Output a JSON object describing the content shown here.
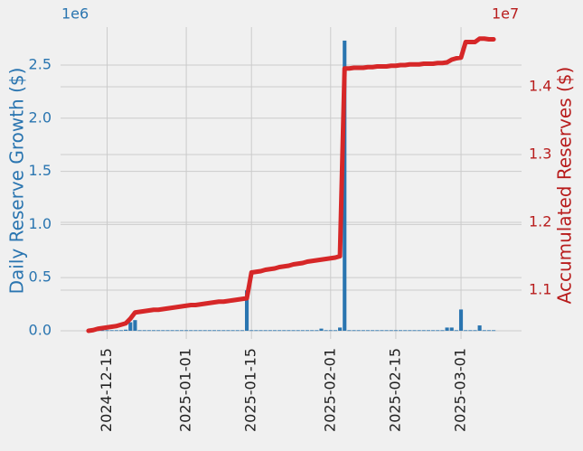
{
  "chart_data": {
    "type": "bar-line",
    "y_offset_label": "1e6",
    "y2_offset_label": "1e7",
    "y_label": "Daily Reserve Growth ($)",
    "y2_label": "Accumulated Reserves ($)",
    "x": [
      "2024-12-11",
      "2024-12-12",
      "2024-12-13",
      "2024-12-14",
      "2024-12-15",
      "2024-12-16",
      "2024-12-17",
      "2024-12-18",
      "2024-12-19",
      "2024-12-20",
      "2024-12-21",
      "2024-12-22",
      "2024-12-23",
      "2024-12-24",
      "2024-12-25",
      "2024-12-26",
      "2024-12-27",
      "2024-12-28",
      "2024-12-29",
      "2024-12-30",
      "2024-12-31",
      "2025-01-01",
      "2025-01-02",
      "2025-01-03",
      "2025-01-04",
      "2025-01-05",
      "2025-01-06",
      "2025-01-07",
      "2025-01-08",
      "2025-01-09",
      "2025-01-10",
      "2025-01-11",
      "2025-01-12",
      "2025-01-13",
      "2025-01-14",
      "2025-01-15",
      "2025-01-16",
      "2025-01-17",
      "2025-01-18",
      "2025-01-19",
      "2025-01-20",
      "2025-01-21",
      "2025-01-22",
      "2025-01-23",
      "2025-01-24",
      "2025-01-25",
      "2025-01-26",
      "2025-01-27",
      "2025-01-28",
      "2025-01-29",
      "2025-01-30",
      "2025-01-31",
      "2025-02-01",
      "2025-02-02",
      "2025-02-03",
      "2025-02-04",
      "2025-02-05",
      "2025-02-06",
      "2025-02-07",
      "2025-02-08",
      "2025-02-09",
      "2025-02-10",
      "2025-02-11",
      "2025-02-12",
      "2025-02-13",
      "2025-02-14",
      "2025-02-15",
      "2025-02-16",
      "2025-02-17",
      "2025-02-18",
      "2025-02-19",
      "2025-02-20",
      "2025-02-21",
      "2025-02-22",
      "2025-02-23",
      "2025-02-24",
      "2025-02-25",
      "2025-02-26",
      "2025-02-27",
      "2025-02-28",
      "2025-03-01",
      "2025-03-02",
      "2025-03-03",
      "2025-03-04",
      "2025-03-05",
      "2025-03-06",
      "2025-03-07",
      "2025-03-08"
    ],
    "series": [
      {
        "kind": "bar",
        "color": "#2a75b0",
        "values": [
          0.005,
          0.005,
          0.005,
          0.005,
          0.005,
          0.005,
          0.005,
          0.005,
          0.01,
          0.08,
          0.1,
          0.005,
          0.005,
          0.005,
          0.005,
          0.005,
          0.005,
          0.005,
          0.005,
          0.005,
          0.005,
          0.005,
          0.005,
          0.005,
          0.005,
          0.005,
          0.005,
          0.005,
          0.005,
          0.005,
          0.005,
          0.005,
          0.005,
          0.005,
          0.38,
          0.005,
          0.005,
          0.005,
          0.005,
          0.005,
          0.005,
          0.005,
          0.005,
          0.005,
          0.005,
          0.005,
          0.005,
          0.005,
          0.005,
          0.005,
          0.02,
          0.005,
          0.005,
          0.005,
          0.03,
          2.73,
          0.005,
          0.005,
          0.005,
          0.005,
          0.005,
          0.005,
          0.005,
          0.005,
          0.005,
          0.005,
          0.005,
          0.005,
          0.005,
          0.005,
          0.005,
          0.005,
          0.005,
          0.005,
          0.005,
          0.005,
          0.005,
          0.03,
          0.03,
          0.005,
          0.2,
          0.005,
          0.005,
          0.005,
          0.05,
          0.005,
          0.005,
          0.005
        ]
      },
      {
        "kind": "line",
        "axis": "y2",
        "color": "#d62728",
        "values": [
          1.04,
          1.041,
          1.043,
          1.044,
          1.045,
          1.046,
          1.047,
          1.049,
          1.051,
          1.058,
          1.067,
          1.068,
          1.069,
          1.07,
          1.071,
          1.071,
          1.072,
          1.073,
          1.074,
          1.075,
          1.076,
          1.077,
          1.078,
          1.078,
          1.079,
          1.08,
          1.081,
          1.082,
          1.083,
          1.083,
          1.084,
          1.085,
          1.086,
          1.087,
          1.088,
          1.126,
          1.127,
          1.128,
          1.13,
          1.131,
          1.132,
          1.134,
          1.135,
          1.136,
          1.138,
          1.139,
          1.14,
          1.142,
          1.143,
          1.144,
          1.145,
          1.146,
          1.147,
          1.148,
          1.15,
          1.427,
          1.427,
          1.428,
          1.428,
          1.428,
          1.429,
          1.429,
          1.43,
          1.43,
          1.43,
          1.431,
          1.431,
          1.432,
          1.432,
          1.433,
          1.433,
          1.433,
          1.434,
          1.434,
          1.434,
          1.435,
          1.435,
          1.436,
          1.44,
          1.442,
          1.443,
          1.466,
          1.466,
          1.466,
          1.471,
          1.471,
          1.47,
          1.47
        ]
      }
    ],
    "xlim": [
      "2024-12-05",
      "2025-03-14"
    ],
    "xticks": [
      "2024-12-15",
      "2025-01-01",
      "2025-01-15",
      "2025-02-01",
      "2025-02-15",
      "2025-03-01"
    ],
    "ylim": [
      -0.077,
      2.857
    ],
    "yticks": [
      {
        "value": 0,
        "label": "0.0"
      },
      0.5,
      {
        "value": 1,
        "label": "1.0"
      },
      1.5,
      {
        "value": 2,
        "label": "2.0"
      },
      2.5
    ],
    "y2lim": [
      1.028,
      1.488
    ],
    "y2ticks": [
      1.1,
      1.2,
      1.3,
      1.4
    ],
    "grid": true
  }
}
